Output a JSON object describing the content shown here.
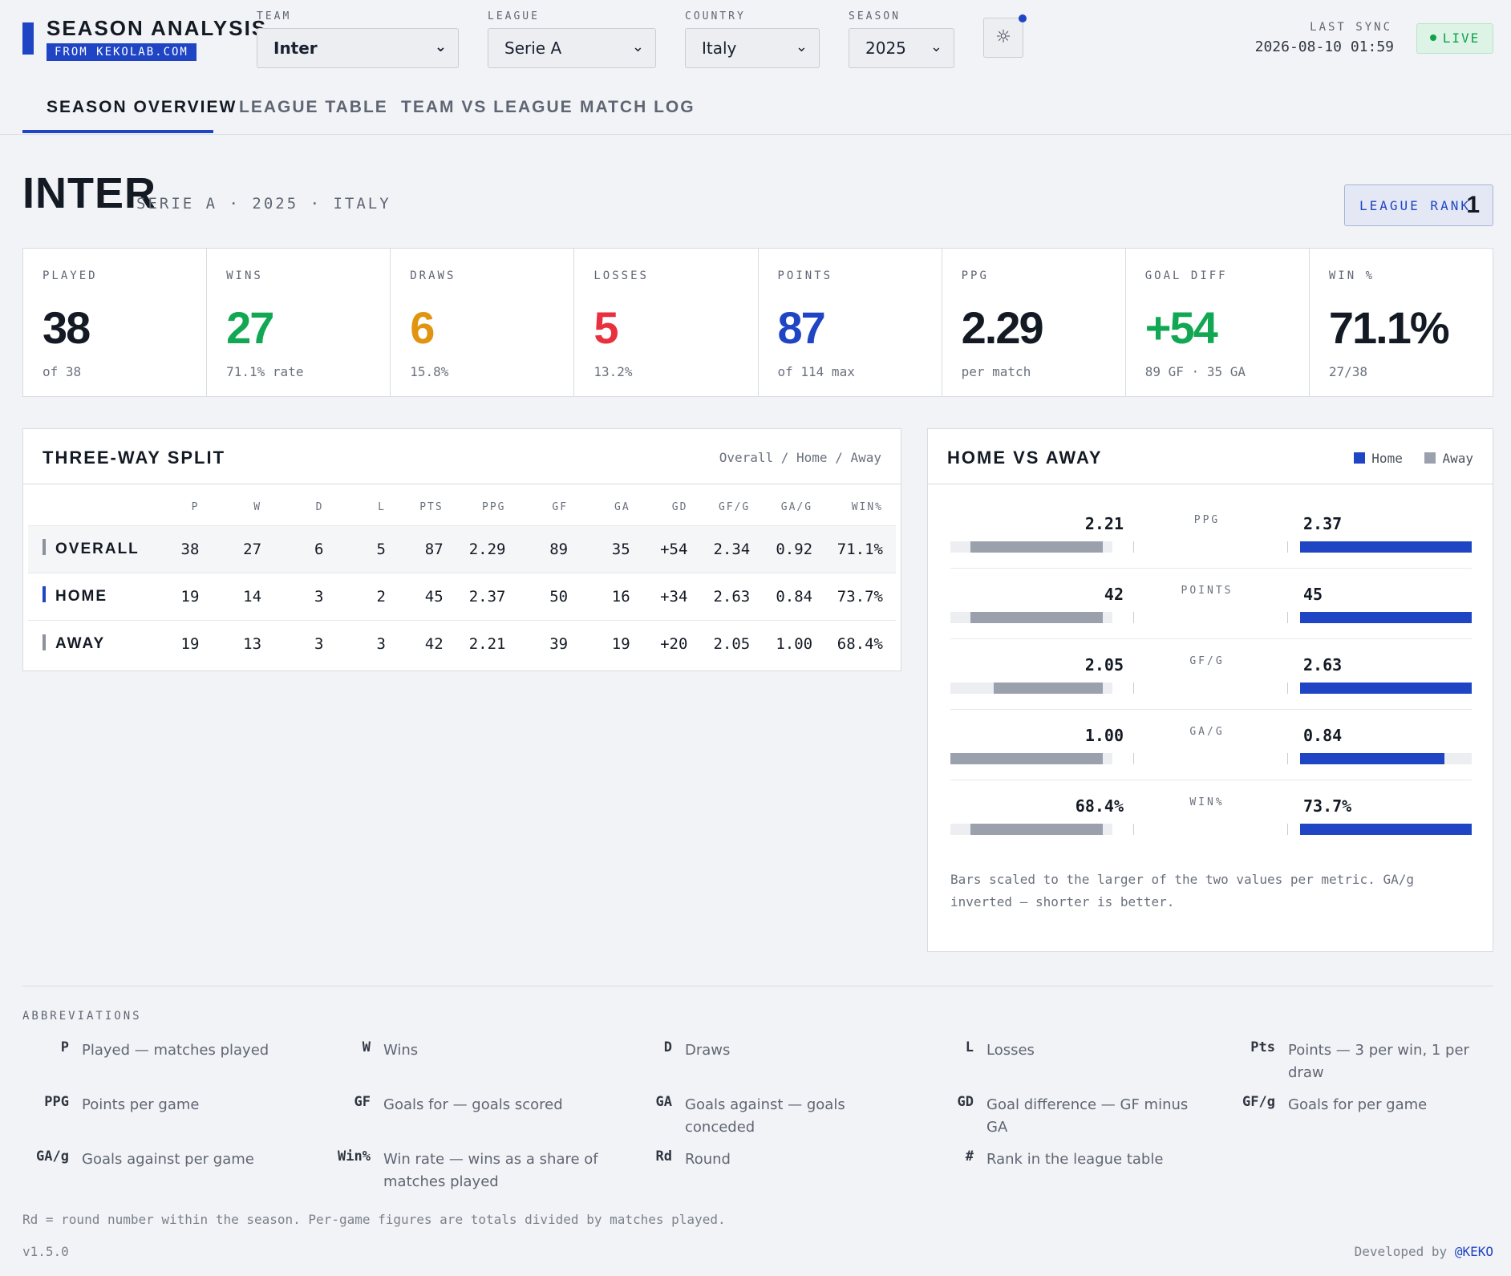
{
  "header": {
    "brand_title": "SEASON ANALYSIS",
    "brand_sub": "FROM KEKOLAB.COM",
    "filters": [
      {
        "label": "TEAM",
        "value": "Inter"
      },
      {
        "label": "LEAGUE",
        "value": "Serie A"
      },
      {
        "label": "COUNTRY",
        "value": "Italy"
      },
      {
        "label": "SEASON",
        "value": "2025"
      }
    ],
    "theme_icon": "sun-icon",
    "sync_label": "LAST SYNC",
    "sync_value": "2026-08-10 01:59",
    "live_label": "LIVE",
    "tabs": [
      "SEASON OVERVIEW",
      "LEAGUE TABLE",
      "TEAM VS LEAGUE",
      "MATCH LOG"
    ],
    "active_tab": "SEASON OVERVIEW"
  },
  "title": {
    "team": "INTER",
    "meta": "SERIE A · 2025 · ITALY",
    "rank_label": "LEAGUE RANK",
    "rank_value": "1"
  },
  "stats": [
    {
      "label": "PLAYED",
      "value": "38",
      "sub": "of 38",
      "color": "#141a24"
    },
    {
      "label": "WINS",
      "value": "27",
      "sub": "71.1% rate",
      "color": "#12a853"
    },
    {
      "label": "DRAWS",
      "value": "6",
      "sub": "15.8%",
      "color": "#e0940f"
    },
    {
      "label": "LOSSES",
      "value": "5",
      "sub": "13.2%",
      "color": "#e8303f"
    },
    {
      "label": "POINTS",
      "value": "87",
      "sub": "of 114 max",
      "color": "#1f45c4"
    },
    {
      "label": "PPG",
      "value": "2.29",
      "sub": "per match",
      "color": "#141a24"
    },
    {
      "label": "GOAL DIFF",
      "value": "+54",
      "sub": "89 GF · 35 GA",
      "color": "#12a853"
    },
    {
      "label": "WIN %",
      "value": "71.1%",
      "sub": "27/38",
      "color": "#141a24"
    }
  ],
  "split": {
    "title": "THREE-WAY SPLIT",
    "filter": "Overall / Home / Away",
    "columns": [
      "",
      "P",
      "W",
      "D",
      "L",
      "PTS",
      "PPG",
      "GF",
      "GA",
      "GD",
      "GF/G",
      "GA/G",
      "WIN%"
    ],
    "rows": [
      {
        "name": "OVERALL",
        "color": "#8b929c",
        "cells": [
          "38",
          "27",
          "6",
          "5",
          "87",
          "2.29",
          "89",
          "35",
          "+54",
          "2.34",
          "0.92",
          "71.1%"
        ]
      },
      {
        "name": "HOME",
        "color": "#1f45c4",
        "cells": [
          "19",
          "14",
          "3",
          "2",
          "45",
          "2.37",
          "50",
          "16",
          "+34",
          "2.63",
          "0.84",
          "73.7%"
        ]
      },
      {
        "name": "AWAY",
        "color": "#8b929c",
        "cells": [
          "19",
          "13",
          "3",
          "3",
          "42",
          "2.21",
          "39",
          "19",
          "+20",
          "2.05",
          "1.00",
          "68.4%"
        ]
      }
    ]
  },
  "home_away": {
    "title": "HOME VS AWAY",
    "legend_home": "Home",
    "legend_away": "Away",
    "home_color": "#1f45c4",
    "away_color": "#9aa1ad",
    "metrics": [
      {
        "name": "PPG",
        "away": "2.21",
        "home": "2.37",
        "away_frac": 0.93,
        "home_frac": 1.0
      },
      {
        "name": "POINTS",
        "away": "42",
        "home": "45",
        "away_frac": 0.93,
        "home_frac": 1.0
      },
      {
        "name": "GF/G",
        "away": "2.05",
        "home": "2.63",
        "away_frac": 0.78,
        "home_frac": 1.0
      },
      {
        "name": "GA/G",
        "away": "1.00",
        "home": "0.84",
        "away_frac": 1.0,
        "home_frac": 0.84
      },
      {
        "name": "WIN%",
        "away": "68.4%",
        "home": "73.7%",
        "away_frac": 0.93,
        "home_frac": 1.0
      }
    ],
    "note": "Bars scaled to the larger of the two values per metric. GA/g inverted — shorter is better."
  },
  "abbreviations": {
    "title": "ABBREVIATIONS",
    "items": [
      {
        "k": "P",
        "v": "Played — matches played"
      },
      {
        "k": "W",
        "v": "Wins"
      },
      {
        "k": "D",
        "v": "Draws"
      },
      {
        "k": "L",
        "v": "Losses"
      },
      {
        "k": "Pts",
        "v": "Points — 3 per win, 1 per draw"
      },
      {
        "k": "PPG",
        "v": "Points per game"
      },
      {
        "k": "GF",
        "v": "Goals for — goals scored"
      },
      {
        "k": "GA",
        "v": "Goals against — goals conceded"
      },
      {
        "k": "GD",
        "v": "Goal difference — GF minus GA"
      },
      {
        "k": "GF/g",
        "v": "Goals for per game"
      },
      {
        "k": "GA/g",
        "v": "Goals against per game"
      },
      {
        "k": "Win%",
        "v": "Win rate — wins as a share of matches played"
      },
      {
        "k": "Rd",
        "v": "Round"
      },
      {
        "k": "#",
        "v": "Rank in the league table"
      }
    ],
    "note": "Rd = round number within the season. Per-game figures are totals divided by matches played."
  },
  "footer": {
    "version": "v1.5.0",
    "dev_prefix": "Developed by ",
    "dev_link": "@KEKO"
  }
}
